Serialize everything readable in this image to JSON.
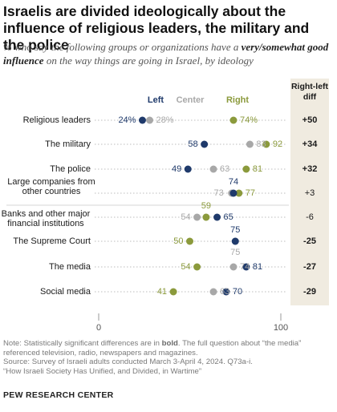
{
  "title": "Israelis are divided ideologically about the influence of religious leaders, the military and the police",
  "subtitle": {
    "before": "% who say the following groups or organizations have a ",
    "bold": "very/somewhat good influence",
    "after": " on the way things are going in Israel, by ideology"
  },
  "note": {
    "prefix": "Note: Statistically significant differences are in ",
    "bold": "bold",
    "suffix": ". The full question about “the media” referenced television, radio, newspapers and magazines.",
    "source": "Source: Survey of Israeli adults conducted March 3-April 4, 2024. Q73a-i.",
    "report": "“How Israeli Society Has Unified, and Divided, in Wartime”"
  },
  "credit": "PEW RESEARCH CENTER",
  "chart_data": {
    "type": "scatter",
    "subtype": "dot-plot",
    "legend": [
      "Left",
      "Center",
      "Right"
    ],
    "diff_header": "Right-left diff",
    "xlim": [
      0,
      100
    ],
    "xticks": [
      "0",
      "100"
    ],
    "colors": {
      "Left": "#1f3a6b",
      "Center": "#a8a8a8",
      "Right": "#8b9a3c",
      "diff_bg": "#f0ebe0"
    },
    "rows": [
      {
        "label": "Religious leaders",
        "left": 24,
        "center": 28,
        "right": 74,
        "left_label": "24%",
        "center_label": "28%",
        "right_label": "74%",
        "diff": "+50",
        "diff_bold": true
      },
      {
        "label": "The military",
        "left": 58,
        "center": 83,
        "right": 92,
        "left_label": "58",
        "center_label": "83",
        "right_label": "92",
        "diff": "+34",
        "diff_bold": true
      },
      {
        "label": "The police",
        "left": 49,
        "center": 63,
        "right": 81,
        "left_label": "49",
        "center_label": "63",
        "right_label": "81",
        "diff": "+32",
        "diff_bold": true
      },
      {
        "label": "Large companies from other countries",
        "left": 74,
        "center": 73,
        "right": 77,
        "left_label": "74",
        "center_label": "73",
        "right_label": "77",
        "diff": "+3",
        "diff_bold": false
      },
      {
        "label": "Banks and other major financial institutions",
        "left": 65,
        "center": 54,
        "right": 59,
        "left_label": "65",
        "center_label": "54",
        "right_label": "59",
        "diff": "-6",
        "diff_bold": false
      },
      {
        "label": "The Supreme Court",
        "left": 75,
        "center": 75,
        "right": 50,
        "left_label": "75",
        "center_label": "75",
        "right_label": "50",
        "diff": "-25",
        "diff_bold": true
      },
      {
        "label": "The media",
        "left": 81,
        "center": 74,
        "right": 54,
        "left_label": "81",
        "center_label": "74",
        "right_label": "54",
        "diff": "-27",
        "diff_bold": true
      },
      {
        "label": "Social media",
        "left": 70,
        "center": 63,
        "right": 41,
        "left_label": "70",
        "center_label": "63",
        "right_label": "41",
        "diff": "-29",
        "diff_bold": true
      }
    ]
  }
}
